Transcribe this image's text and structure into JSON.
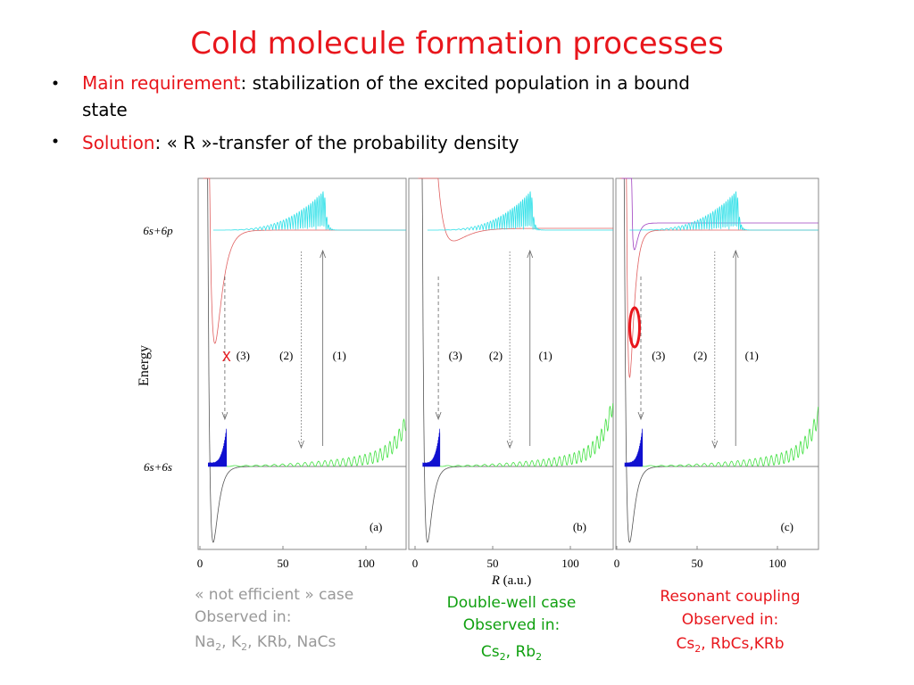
{
  "title": "Cold molecule formation processes",
  "bullets": [
    {
      "label": "Main requirement",
      "text_line1": ": stabilization of the excited population in a bound",
      "text_line2": "state"
    },
    {
      "label": "Solution",
      "text_line1": ": « R »-transfer of the probability density"
    }
  ],
  "figure": {
    "y_axis_label": "Energy",
    "x_axis_label": "R",
    "x_axis_unit": "(a.u.)",
    "levels": [
      "6s+6p",
      "6s+6s"
    ],
    "panels": [
      {
        "tag": "(a)",
        "ticks": [
          "0",
          "50",
          "100"
        ],
        "arrows": [
          "(3)",
          "(2)",
          "(1)"
        ],
        "marker": "X"
      },
      {
        "tag": "(b)",
        "ticks": [
          "0",
          "50",
          "100"
        ],
        "arrows": [
          "(3)",
          "(2)",
          "(1)"
        ]
      },
      {
        "tag": "(c)",
        "ticks": [
          "0",
          "50",
          "100"
        ],
        "arrows": [
          "(3)",
          "(2)",
          "(1)"
        ]
      }
    ]
  },
  "captions": [
    {
      "line1": "« not efficient » case",
      "line2": "Observed in:",
      "line3": [
        "Na",
        "2",
        ", K",
        "2",
        ", KRb, NaCs"
      ]
    },
    {
      "line1": "Double-well case",
      "line2": "Observed in:",
      "line3": [
        "Cs",
        "2",
        ", Rb",
        "2"
      ]
    },
    {
      "line1": "Resonant coupling",
      "line2": "Observed in:",
      "line3": [
        "Cs",
        "2",
        ", RbCs,KRb"
      ]
    }
  ]
}
